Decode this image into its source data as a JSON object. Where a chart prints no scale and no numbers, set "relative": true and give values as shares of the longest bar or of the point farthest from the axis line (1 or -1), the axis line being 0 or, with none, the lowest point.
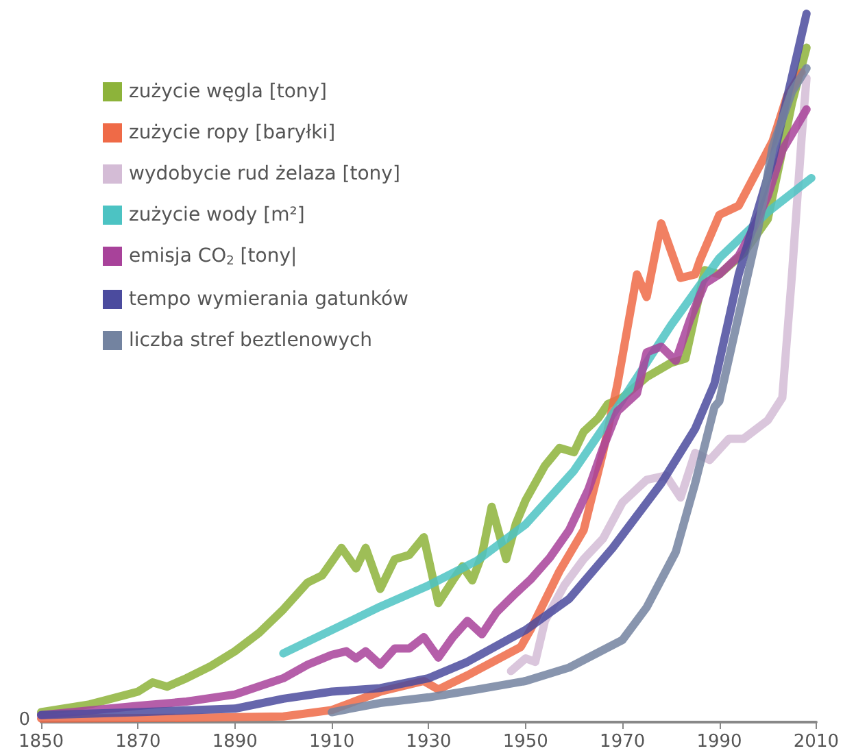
{
  "chart_data": {
    "type": "line",
    "relative": true,
    "xlim": [
      1850,
      2010
    ],
    "xticks": [
      1850,
      1870,
      1890,
      1910,
      1930,
      1950,
      1970,
      1990,
      2010
    ],
    "legend": "top left",
    "grid": false,
    "marker": "none",
    "line_style": "solid",
    "annotations": [
      "0"
    ],
    "series": [
      {
        "name": "zużycie węgla [tony]",
        "color": "#8db33a",
        "x": [
          1850,
          1860,
          1870,
          1873,
          1876,
          1880,
          1885,
          1890,
          1895,
          1900,
          1905,
          1908,
          1912,
          1915,
          1917,
          1920,
          1923,
          1926,
          1929,
          1932,
          1935,
          1937,
          1939,
          1941,
          1943,
          1946,
          1948,
          1950,
          1954,
          1957,
          1960,
          1962,
          1965,
          1967,
          1970,
          1975,
          1980,
          1983,
          1987,
          1990,
          1995,
          2000,
          2003,
          2005,
          2008
        ],
        "values": [
          0.014,
          0.025,
          0.043,
          0.056,
          0.05,
          0.062,
          0.079,
          0.1,
          0.126,
          0.159,
          0.197,
          0.207,
          0.246,
          0.217,
          0.246,
          0.188,
          0.23,
          0.236,
          0.261,
          0.168,
          0.2,
          0.22,
          0.2,
          0.236,
          0.304,
          0.23,
          0.28,
          0.313,
          0.362,
          0.387,
          0.381,
          0.41,
          0.429,
          0.449,
          0.458,
          0.487,
          0.507,
          0.513,
          0.638,
          0.632,
          0.662,
          0.71,
          0.807,
          0.874,
          0.952
        ]
      },
      {
        "name": "zużycie ropy [baryłki]",
        "color": "#ef6a47",
        "x": [
          1850,
          1880,
          1900,
          1910,
          1920,
          1929,
          1932,
          1938,
          1949,
          1951,
          1957,
          1962,
          1966,
          1969,
          1973,
          1975,
          1978,
          1982,
          1985,
          1986,
          1990,
          1994,
          1998,
          2001,
          2004,
          2007
        ],
        "values": [
          0.005,
          0.006,
          0.008,
          0.017,
          0.043,
          0.058,
          0.046,
          0.066,
          0.106,
          0.13,
          0.213,
          0.271,
          0.381,
          0.478,
          0.632,
          0.6,
          0.704,
          0.627,
          0.632,
          0.652,
          0.716,
          0.729,
          0.781,
          0.82,
          0.884,
          0.917
        ]
      },
      {
        "name": "wydobycie rud żelaza [tony]",
        "color": "#d4bcd6",
        "x": [
          1947,
          1950,
          1952,
          1954,
          1958,
          1962,
          1966,
          1970,
          1975,
          1979,
          1982,
          1985,
          1988,
          1992,
          1995,
          2000,
          2003,
          2005,
          2007,
          2008
        ],
        "values": [
          0.072,
          0.09,
          0.085,
          0.143,
          0.193,
          0.23,
          0.259,
          0.31,
          0.342,
          0.348,
          0.317,
          0.38,
          0.37,
          0.4,
          0.4,
          0.426,
          0.458,
          0.632,
          0.826,
          0.909
        ]
      },
      {
        "name": "zużycie wody [m²]",
        "color": "#4cc3c3",
        "x": [
          1900,
          1910,
          1920,
          1930,
          1940,
          1950,
          1960,
          1970,
          1980,
          1990,
          2000,
          2009
        ],
        "values": [
          0.097,
          0.13,
          0.163,
          0.193,
          0.228,
          0.279,
          0.355,
          0.455,
          0.56,
          0.655,
          0.72,
          0.768
        ]
      },
      {
        "name": "emisja CO$_{2}$ [tony|",
        "color": "#a8429a",
        "x": [
          1850,
          1870,
          1880,
          1890,
          1900,
          1905,
          1910,
          1913,
          1915,
          1917,
          1920,
          1923,
          1926,
          1929,
          1932,
          1935,
          1938,
          1941,
          1944,
          1948,
          1951,
          1955,
          1959,
          1963,
          1966,
          1969,
          1973,
          1975,
          1978,
          1981,
          1984,
          1987,
          1990,
          1994,
          1997,
          2000,
          2003,
          2008
        ],
        "values": [
          0.01,
          0.023,
          0.029,
          0.039,
          0.062,
          0.081,
          0.095,
          0.1,
          0.09,
          0.1,
          0.081,
          0.104,
          0.104,
          0.12,
          0.091,
          0.12,
          0.143,
          0.124,
          0.155,
          0.182,
          0.201,
          0.232,
          0.271,
          0.329,
          0.387,
          0.439,
          0.464,
          0.522,
          0.53,
          0.51,
          0.569,
          0.619,
          0.632,
          0.658,
          0.696,
          0.743,
          0.807,
          0.865
        ]
      },
      {
        "name": "tempo wymierania gatunków",
        "color": "#4b4b9e",
        "x": [
          1850,
          1870,
          1890,
          1900,
          1910,
          1920,
          1930,
          1938,
          1950,
          1959,
          1968,
          1978,
          1985,
          1989,
          1994,
          2001,
          2008
        ],
        "values": [
          0.01,
          0.014,
          0.019,
          0.033,
          0.043,
          0.048,
          0.062,
          0.085,
          0.13,
          0.174,
          0.246,
          0.337,
          0.414,
          0.478,
          0.632,
          0.793,
          1
        ]
      },
      {
        "name": "liczba stref beztlenowych",
        "color": "#7383a0",
        "x": [
          1910,
          1920,
          1930,
          1940,
          1950,
          1959,
          1970,
          1975,
          1981,
          1985,
          1989,
          1990,
          1998,
          2001,
          2005,
          2008
        ],
        "values": [
          0.014,
          0.027,
          0.035,
          0.046,
          0.058,
          0.077,
          0.116,
          0.162,
          0.24,
          0.337,
          0.445,
          0.453,
          0.696,
          0.812,
          0.89,
          0.923
        ]
      }
    ]
  }
}
